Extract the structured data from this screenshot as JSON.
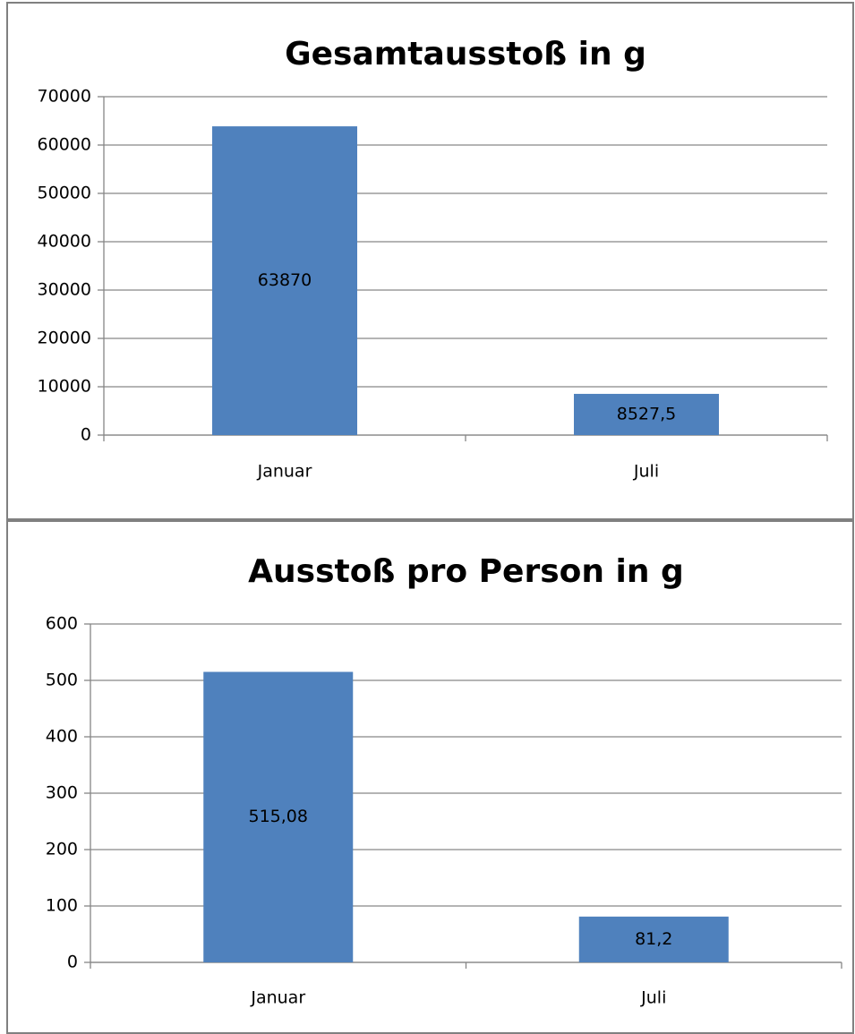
{
  "chart_data": [
    {
      "type": "bar",
      "title": "Gesamtausstoß in g",
      "categories": [
        "Januar",
        "Juli"
      ],
      "values": [
        63870,
        8527.5
      ],
      "value_labels": [
        "63870",
        "8527,5"
      ],
      "color": "#4f81bd",
      "ylim": [
        0,
        70000
      ],
      "yticks": [
        0,
        10000,
        20000,
        30000,
        40000,
        50000,
        60000,
        70000
      ],
      "grid": true
    },
    {
      "type": "bar",
      "title": "Ausstoß pro Person in g",
      "categories": [
        "Januar",
        "Juli"
      ],
      "values": [
        515.08,
        81.2
      ],
      "value_labels": [
        "515,08",
        "81,2"
      ],
      "color": "#4f81bd",
      "ylim": [
        0,
        600
      ],
      "yticks": [
        0,
        100,
        200,
        300,
        400,
        500,
        600
      ],
      "grid": true
    }
  ]
}
